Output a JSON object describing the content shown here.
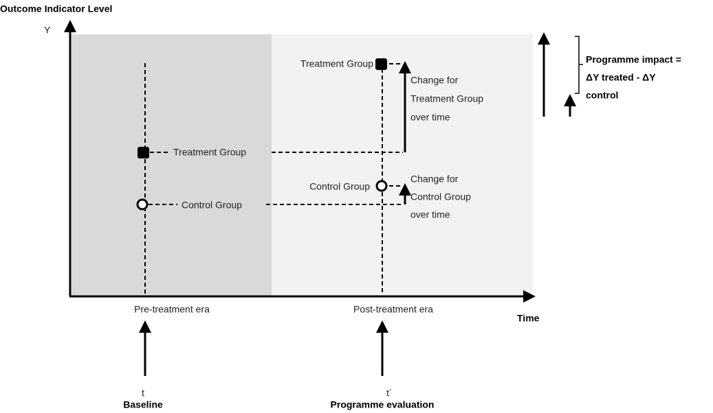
{
  "y_axis": {
    "title": "Outcome Indicator Level",
    "symbol": "Y"
  },
  "x_axis": {
    "title": "Time",
    "eras": [
      "Pre-treatment era",
      "Post-treatment era"
    ]
  },
  "baseline": {
    "group_labels": [
      "Treatment Group",
      "Control Group"
    ]
  },
  "evaluation": {
    "group_labels": [
      "Treatment Group",
      "Control Group"
    ]
  },
  "change_treatment": [
    "Change for",
    "Treatment Group",
    "over time"
  ],
  "change_control": [
    "Change for",
    "Control Group",
    "over time"
  ],
  "impact": [
    "Programme impact =",
    "ΔY treated - ΔY",
    "control"
  ],
  "time_points": [
    {
      "symbol": "t",
      "label": "Baseline"
    },
    {
      "symbol": "t´",
      "label": "Programme evaluation"
    }
  ]
}
